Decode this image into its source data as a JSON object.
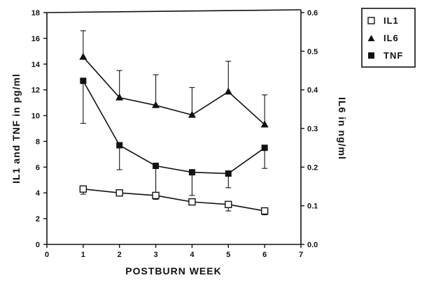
{
  "chart_data": {
    "type": "line",
    "xlabel": "POSTBURN WEEK",
    "ylabel_left": "IL1 and TNF in pg/ml",
    "ylabel_right": "IL6 in ng/ml",
    "xlim": [
      0,
      7
    ],
    "ylim_left": [
      0,
      18
    ],
    "ylim_right": [
      0,
      0.6
    ],
    "x_ticks": [
      "0",
      "1",
      "2",
      "3",
      "4",
      "5",
      "6",
      "7"
    ],
    "y_left_ticks": [
      "0",
      "2",
      "4",
      "6",
      "8",
      "10",
      "12",
      "14",
      "16",
      "18"
    ],
    "y_right_ticks": [
      "0.0",
      "0.1",
      "0.2",
      "0.3",
      "0.4",
      "0.5",
      "0.6"
    ],
    "legend_position": "top-right",
    "grid": false,
    "series": [
      {
        "name": "IL1",
        "marker": "open-square",
        "axis": "left",
        "x": [
          1,
          2,
          3,
          4,
          5,
          6
        ],
        "values": [
          4.3,
          4.0,
          3.8,
          3.3,
          3.1,
          2.6
        ],
        "err_up": [
          0,
          0,
          0,
          0,
          0,
          0
        ],
        "err_down": [
          0.4,
          0.2,
          0.3,
          0.2,
          0.5,
          0.3
        ]
      },
      {
        "name": "IL6",
        "marker": "filled-triangle",
        "axis": "right",
        "x": [
          1,
          2,
          3,
          4,
          5,
          6
        ],
        "values": [
          0.485,
          0.38,
          0.36,
          0.335,
          0.395,
          0.31
        ],
        "err_up": [
          0.068,
          0.07,
          0.079,
          0.071,
          0.079,
          0.077
        ],
        "err_down": [
          0,
          0,
          0,
          0,
          0,
          0
        ]
      },
      {
        "name": "TNF",
        "marker": "filled-square",
        "axis": "left",
        "x": [
          1,
          2,
          3,
          4,
          5,
          6
        ],
        "values": [
          12.7,
          7.7,
          6.1,
          5.6,
          5.5,
          7.5
        ],
        "err_up": [
          0,
          0,
          0,
          0,
          0,
          0
        ],
        "err_down": [
          3.3,
          1.9,
          2.3,
          1.8,
          1.1,
          1.6
        ]
      }
    ]
  }
}
